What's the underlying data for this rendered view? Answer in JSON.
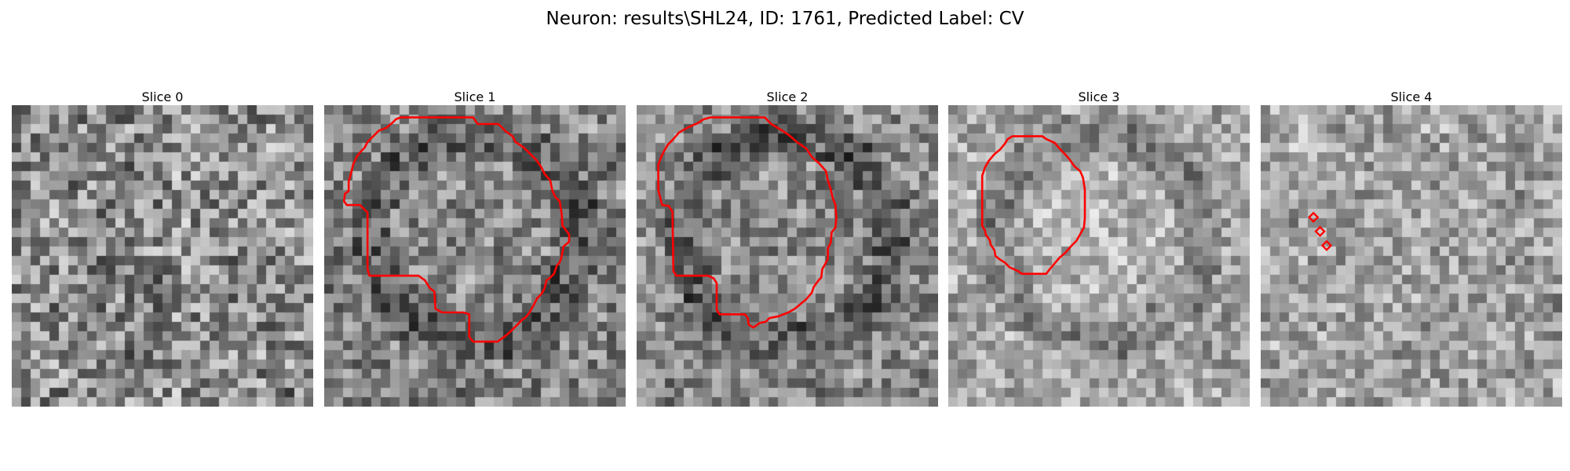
{
  "figure": {
    "title": "Neuron: results\\SHL24, ID: 1761, Predicted Label: CV"
  },
  "contour_color": "#ff0000",
  "slices": [
    {
      "title": "Slice 0",
      "contour": []
    },
    {
      "title": "Slice 1",
      "contour": [
        [
          14.2,
          1.3
        ],
        [
          15.8,
          1.3
        ],
        [
          16.3,
          2.0
        ],
        [
          18.5,
          2.0
        ],
        [
          19.3,
          2.8
        ],
        [
          20.0,
          3.3
        ],
        [
          20.3,
          3.9
        ],
        [
          21.2,
          4.5
        ],
        [
          22.5,
          5.8
        ],
        [
          23.0,
          6.5
        ],
        [
          23.4,
          7.3
        ],
        [
          24.0,
          8.0
        ],
        [
          24.2,
          9.0
        ],
        [
          24.5,
          9.7
        ],
        [
          25.0,
          10.2
        ],
        [
          25.2,
          11.5
        ],
        [
          25.3,
          12.8
        ],
        [
          26.0,
          13.7
        ],
        [
          26.0,
          14.5
        ],
        [
          25.4,
          15.0
        ],
        [
          25.2,
          16.1
        ],
        [
          25.0,
          16.7
        ],
        [
          24.7,
          17.0
        ],
        [
          24.4,
          17.9
        ],
        [
          24.0,
          18.3
        ],
        [
          23.6,
          18.6
        ],
        [
          23.4,
          19.4
        ],
        [
          23.1,
          20.0
        ],
        [
          22.6,
          20.5
        ],
        [
          22.2,
          21.3
        ],
        [
          21.8,
          22.0
        ],
        [
          21.4,
          22.5
        ],
        [
          21.0,
          22.8
        ],
        [
          20.4,
          23.4
        ],
        [
          19.7,
          24.1
        ],
        [
          19.1,
          24.6
        ],
        [
          18.4,
          25.1
        ],
        [
          15.8,
          25.1
        ],
        [
          15.4,
          24.6
        ],
        [
          15.4,
          22.2
        ],
        [
          14.8,
          22.0
        ],
        [
          12.5,
          22.0
        ],
        [
          11.8,
          21.6
        ],
        [
          11.7,
          19.8
        ],
        [
          11.2,
          19.4
        ],
        [
          10.7,
          18.6
        ],
        [
          10.0,
          18.1
        ],
        [
          4.8,
          18.1
        ],
        [
          4.6,
          17.4
        ],
        [
          4.6,
          11.4
        ],
        [
          3.8,
          10.6
        ],
        [
          2.4,
          10.6
        ],
        [
          2.1,
          10.2
        ],
        [
          2.2,
          9.4
        ],
        [
          2.6,
          9.1
        ],
        [
          2.6,
          8.1
        ],
        [
          2.8,
          7.4
        ],
        [
          3.1,
          6.2
        ],
        [
          3.5,
          5.4
        ],
        [
          3.9,
          4.9
        ],
        [
          4.3,
          4.5
        ],
        [
          4.6,
          3.9
        ],
        [
          5.2,
          3.3
        ],
        [
          5.8,
          2.7
        ],
        [
          6.6,
          2.4
        ],
        [
          7.2,
          1.9
        ],
        [
          7.6,
          1.5
        ],
        [
          8.1,
          1.3
        ]
      ]
    },
    {
      "title": "Slice 2",
      "contour": [
        [
          7.8,
          1.3
        ],
        [
          13.6,
          1.3
        ],
        [
          14.3,
          2.0
        ],
        [
          15.3,
          2.6
        ],
        [
          16.2,
          3.2
        ],
        [
          17.0,
          3.9
        ],
        [
          18.0,
          4.6
        ],
        [
          18.6,
          5.5
        ],
        [
          19.4,
          6.2
        ],
        [
          20.1,
          7.0
        ],
        [
          20.3,
          8.0
        ],
        [
          20.6,
          8.9
        ],
        [
          20.8,
          9.8
        ],
        [
          21.1,
          10.6
        ],
        [
          21.2,
          12.0
        ],
        [
          21.1,
          13.0
        ],
        [
          20.7,
          13.5
        ],
        [
          20.6,
          14.6
        ],
        [
          20.3,
          15.2
        ],
        [
          20.3,
          16.3
        ],
        [
          20.0,
          16.9
        ],
        [
          19.7,
          17.4
        ],
        [
          19.6,
          18.3
        ],
        [
          19.3,
          18.6
        ],
        [
          18.8,
          19.3
        ],
        [
          18.6,
          19.9
        ],
        [
          18.0,
          20.6
        ],
        [
          17.4,
          21.1
        ],
        [
          16.8,
          21.6
        ],
        [
          16.1,
          22.0
        ],
        [
          15.1,
          22.4
        ],
        [
          14.1,
          22.6
        ],
        [
          13.7,
          23.0
        ],
        [
          13.1,
          23.1
        ],
        [
          12.4,
          23.6
        ],
        [
          11.9,
          23.3
        ],
        [
          11.8,
          22.6
        ],
        [
          11.5,
          22.2
        ],
        [
          8.8,
          22.2
        ],
        [
          8.5,
          21.7
        ],
        [
          8.5,
          18.9
        ],
        [
          8.2,
          18.4
        ],
        [
          7.6,
          18.1
        ],
        [
          4.2,
          18.1
        ],
        [
          3.9,
          17.6
        ],
        [
          3.8,
          11.3
        ],
        [
          3.4,
          10.7
        ],
        [
          2.7,
          10.6
        ],
        [
          2.5,
          9.8
        ],
        [
          2.3,
          9.0
        ],
        [
          2.3,
          6.3
        ],
        [
          2.6,
          5.5
        ],
        [
          2.9,
          4.9
        ],
        [
          3.3,
          4.2
        ],
        [
          3.9,
          3.6
        ],
        [
          4.5,
          2.9
        ],
        [
          5.2,
          2.5
        ],
        [
          5.8,
          2.2
        ],
        [
          6.5,
          1.9
        ],
        [
          7.1,
          1.5
        ]
      ]
    },
    {
      "title": "Slice 3",
      "contour": [
        [
          6.8,
          3.3
        ],
        [
          8.2,
          3.3
        ],
        [
          10.0,
          3.3
        ],
        [
          10.4,
          3.6
        ],
        [
          11.3,
          4.0
        ],
        [
          11.9,
          4.7
        ],
        [
          12.4,
          5.2
        ],
        [
          12.9,
          5.8
        ],
        [
          13.4,
          6.5
        ],
        [
          14.0,
          7.0
        ],
        [
          14.3,
          7.7
        ],
        [
          14.5,
          9.0
        ],
        [
          14.5,
          12.0
        ],
        [
          14.4,
          13.0
        ],
        [
          14.0,
          13.7
        ],
        [
          13.6,
          14.4
        ],
        [
          13.0,
          15.0
        ],
        [
          12.5,
          15.6
        ],
        [
          11.8,
          16.2
        ],
        [
          11.2,
          16.9
        ],
        [
          10.7,
          17.5
        ],
        [
          10.4,
          17.9
        ],
        [
          7.8,
          17.9
        ],
        [
          7.4,
          17.6
        ],
        [
          6.5,
          17.2
        ],
        [
          6.0,
          16.7
        ],
        [
          5.5,
          16.4
        ],
        [
          5.0,
          16.0
        ],
        [
          4.9,
          15.4
        ],
        [
          4.5,
          14.8
        ],
        [
          4.4,
          14.3
        ],
        [
          4.0,
          13.8
        ],
        [
          3.9,
          13.3
        ],
        [
          3.6,
          12.8
        ],
        [
          3.6,
          7.5
        ],
        [
          3.9,
          6.6
        ],
        [
          4.3,
          5.9
        ],
        [
          4.9,
          5.2
        ],
        [
          5.5,
          4.7
        ],
        [
          6.0,
          4.1
        ],
        [
          6.3,
          3.6
        ]
      ]
    },
    {
      "title": "Slice 4",
      "markers": [
        [
          5.6,
          11.9
        ],
        [
          6.3,
          13.4
        ],
        [
          7.0,
          14.9
        ]
      ]
    }
  ]
}
